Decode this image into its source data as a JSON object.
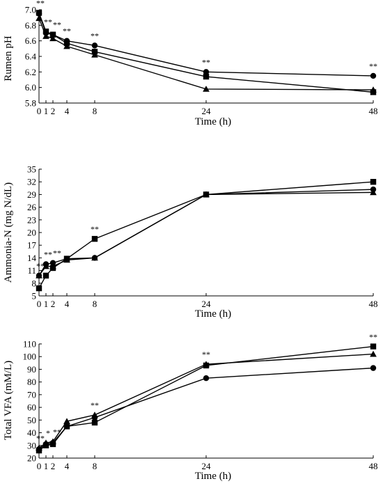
{
  "chart_data": [
    {
      "type": "line",
      "title": "",
      "xlabel": "Time (h)",
      "ylabel": "Rumen pH",
      "x": [
        0,
        1,
        2,
        4,
        8,
        24,
        48
      ],
      "x_ticks": [
        0,
        1,
        2,
        4,
        8,
        24,
        48
      ],
      "xlim": [
        0,
        48
      ],
      "ylim": [
        5.8,
        7.0
      ],
      "y_ticks": [
        "5.8",
        "6.0",
        "6.2",
        "6.4",
        "6.6",
        "6.8",
        "7.0"
      ],
      "grid": false,
      "series": [
        {
          "marker": "circle",
          "values": [
            6.95,
            6.7,
            6.68,
            6.6,
            6.54,
            6.2,
            6.15
          ]
        },
        {
          "marker": "square",
          "values": [
            6.96,
            6.72,
            6.68,
            6.57,
            6.46,
            6.14,
            5.94
          ]
        },
        {
          "marker": "triangle",
          "values": [
            6.89,
            6.66,
            6.63,
            6.53,
            6.42,
            5.98,
            5.97
          ]
        }
      ],
      "annotations": [
        {
          "x": 0,
          "text": "**"
        },
        {
          "x": 1,
          "text": "**"
        },
        {
          "x": 2,
          "text": "**"
        },
        {
          "x": 4,
          "text": "**"
        },
        {
          "x": 8,
          "text": "**"
        },
        {
          "x": 24,
          "text": "**"
        },
        {
          "x": 48,
          "text": "**"
        }
      ]
    },
    {
      "type": "line",
      "title": "",
      "xlabel": "Time (h)",
      "ylabel": "Ammonia-N (mg N/dL)",
      "x": [
        0,
        1,
        2,
        4,
        8,
        24,
        48
      ],
      "x_ticks": [
        0,
        1,
        2,
        4,
        8,
        24,
        48
      ],
      "xlim": [
        0,
        48
      ],
      "ylim": [
        5,
        35
      ],
      "y_ticks": [
        "5",
        "8",
        "11",
        "14",
        "17",
        "20",
        "23",
        "26",
        "29",
        "32",
        "35"
      ],
      "grid": false,
      "series": [
        {
          "marker": "circle",
          "values": [
            9.8,
            12.5,
            12.8,
            13.8,
            14.0,
            29.0,
            30.2
          ]
        },
        {
          "marker": "square",
          "values": [
            6.8,
            9.8,
            11.6,
            13.8,
            18.5,
            29.0,
            32.0
          ]
        },
        {
          "marker": "triangle",
          "values": [
            9.8,
            12.0,
            12.0,
            13.5,
            14.0,
            29.0,
            29.5
          ]
        }
      ],
      "annotations": [
        {
          "x": 0,
          "text": "**"
        },
        {
          "x": 1,
          "text": "**"
        },
        {
          "x": 2,
          "text": "**"
        },
        {
          "x": 8,
          "text": "**"
        }
      ]
    },
    {
      "type": "line",
      "title": "",
      "xlabel": "Time (h)",
      "ylabel": "Total VFA (mM/L)",
      "x": [
        0,
        1,
        2,
        4,
        8,
        24,
        48
      ],
      "x_ticks": [
        0,
        1,
        2,
        4,
        8,
        24,
        48
      ],
      "xlim": [
        0,
        48
      ],
      "ylim": [
        20,
        110
      ],
      "y_ticks": [
        "20",
        "30",
        "40",
        "50",
        "60",
        "70",
        "80",
        "90",
        "100",
        "110"
      ],
      "grid": false,
      "series": [
        {
          "marker": "circle",
          "values": [
            27,
            31,
            32,
            45,
            52,
            83,
            91
          ]
        },
        {
          "marker": "square",
          "values": [
            26,
            30,
            31,
            45,
            48,
            93,
            108
          ]
        },
        {
          "marker": "triangle",
          "values": [
            28,
            32,
            33,
            49,
            54,
            94,
            102
          ]
        }
      ],
      "annotations": [
        {
          "x": 0,
          "text": "**"
        },
        {
          "x": 1,
          "text": "*"
        },
        {
          "x": 2,
          "text": "**"
        },
        {
          "x": 8,
          "text": "**"
        },
        {
          "x": 24,
          "text": "**"
        },
        {
          "x": 48,
          "text": "**"
        }
      ]
    }
  ]
}
